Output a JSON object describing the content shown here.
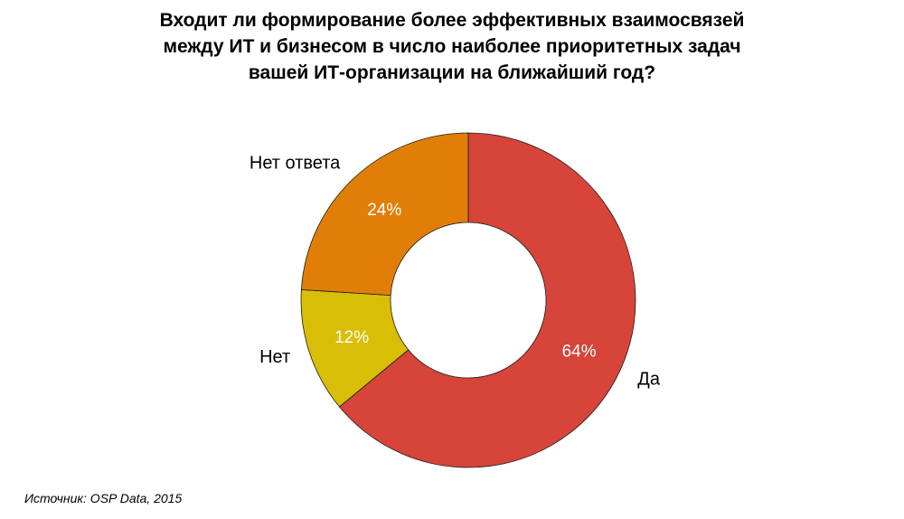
{
  "chart_data": {
    "type": "pie",
    "donut": true,
    "title": "Входит ли формирование более эффективных взаимосвязей\nмежду ИТ и бизнесом в число наиболее приоритетных задач\nвашей ИТ-организации на ближайший год?",
    "slices": [
      {
        "label": "Да",
        "value": 64,
        "value_label": "64%",
        "color": "#D6443A"
      },
      {
        "label": "Нет",
        "value": 12,
        "value_label": "12%",
        "color": "#D9BE08"
      },
      {
        "label": "Нет ответа",
        "value": 24,
        "value_label": "24%",
        "color": "#E17E08"
      }
    ],
    "start": "12 o'clock",
    "direction": "clockwise",
    "legend": "none"
  },
  "source": "Источник: OSP Data, 2015"
}
